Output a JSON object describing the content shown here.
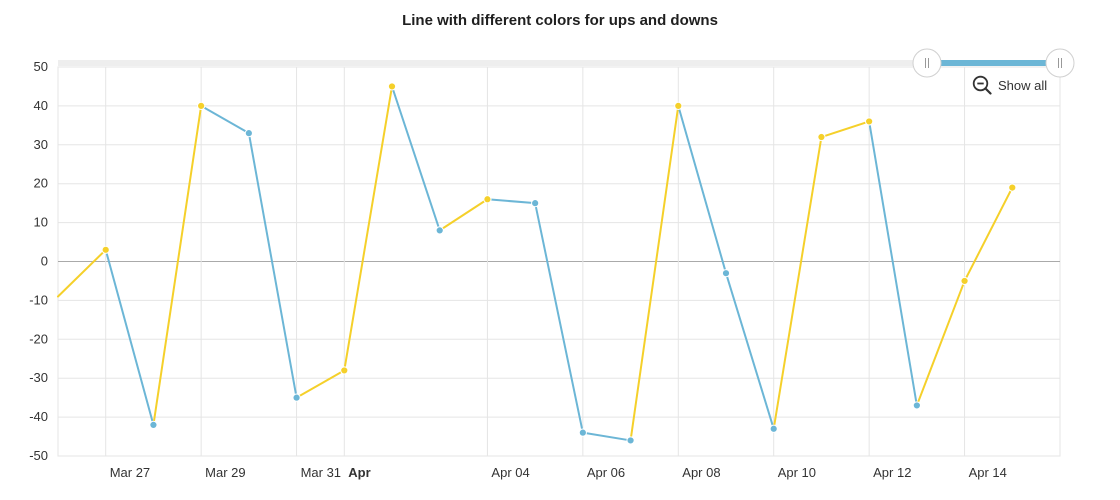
{
  "title": "Line with different colors for ups and downs",
  "controls": {
    "show_all_label": "Show all",
    "zoom_icon": "zoom-out-icon"
  },
  "colors": {
    "up": "#f5d02a",
    "down": "#6cb6d6",
    "grid": "#e5e5e5",
    "zero_line": "#aaaaaa",
    "scrollbar_fill": "#6cb6d6",
    "scrollbar_track": "#eeeeee"
  },
  "chart_data": {
    "type": "line",
    "title": "Line with different colors for ups and downs",
    "xlabel": "",
    "ylabel": "",
    "ylim": [
      -50,
      50
    ],
    "yticks": [
      -50,
      -40,
      -30,
      -20,
      -10,
      0,
      10,
      20,
      30,
      40,
      50
    ],
    "xlim": [
      "2021-03-26",
      "2021-04-16"
    ],
    "xticks": [
      {
        "date": "2021-03-27",
        "label": "Mar 27",
        "bold": false
      },
      {
        "date": "2021-03-29",
        "label": "Mar 29",
        "bold": false
      },
      {
        "date": "2021-03-31",
        "label": "Mar 31",
        "bold": false
      },
      {
        "date": "2021-04-01",
        "label": "Apr",
        "bold": true
      },
      {
        "date": "2021-04-04",
        "label": "Apr 04",
        "bold": false
      },
      {
        "date": "2021-04-06",
        "label": "Apr 06",
        "bold": false
      },
      {
        "date": "2021-04-08",
        "label": "Apr 08",
        "bold": false
      },
      {
        "date": "2021-04-10",
        "label": "Apr 10",
        "bold": false
      },
      {
        "date": "2021-04-12",
        "label": "Apr 12",
        "bold": false
      },
      {
        "date": "2021-04-14",
        "label": "Apr 14",
        "bold": false
      }
    ],
    "grid": true,
    "points": [
      {
        "date": "2021-03-26",
        "value": -9,
        "marker": false
      },
      {
        "date": "2021-03-27",
        "value": 3
      },
      {
        "date": "2021-03-28",
        "value": -42
      },
      {
        "date": "2021-03-29",
        "value": 40
      },
      {
        "date": "2021-03-30",
        "value": 33
      },
      {
        "date": "2021-03-31",
        "value": -35
      },
      {
        "date": "2021-04-01",
        "value": -28
      },
      {
        "date": "2021-04-02",
        "value": 45
      },
      {
        "date": "2021-04-03",
        "value": 8
      },
      {
        "date": "2021-04-04",
        "value": 16
      },
      {
        "date": "2021-04-05",
        "value": 15
      },
      {
        "date": "2021-04-06",
        "value": -44
      },
      {
        "date": "2021-04-07",
        "value": -46
      },
      {
        "date": "2021-04-08",
        "value": 40
      },
      {
        "date": "2021-04-09",
        "value": -3
      },
      {
        "date": "2021-04-10",
        "value": -43
      },
      {
        "date": "2021-04-11",
        "value": 32
      },
      {
        "date": "2021-04-12",
        "value": 36
      },
      {
        "date": "2021-04-13",
        "value": -37
      },
      {
        "date": "2021-04-14",
        "value": -5
      },
      {
        "date": "2021-04-15",
        "value": 19
      }
    ],
    "scrollbar": {
      "start": 0.0,
      "end": 1.0
    }
  }
}
